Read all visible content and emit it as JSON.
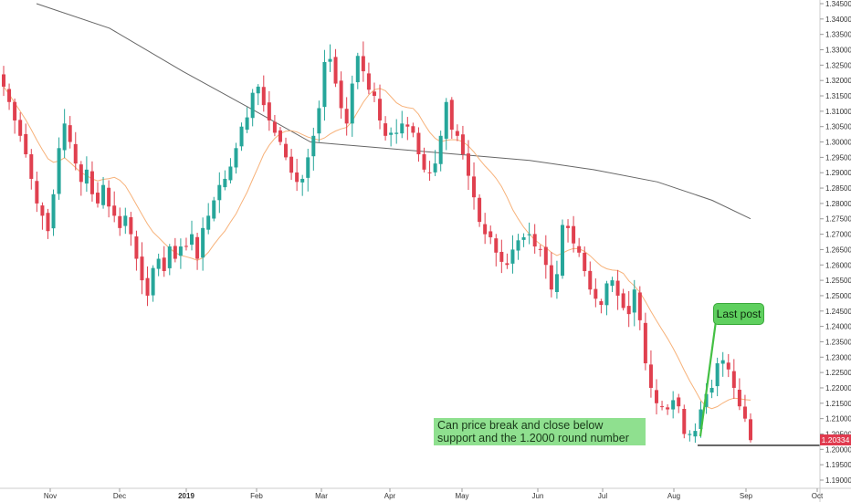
{
  "chart_data": {
    "type": "candlestick",
    "symbol_hint": "",
    "y_axis": {
      "min": 1.19,
      "max": 1.345,
      "ticks": [
        "1.34500",
        "1.34000",
        "1.33500",
        "1.33000",
        "1.32500",
        "1.32000",
        "1.31500",
        "1.31000",
        "1.30500",
        "1.30000",
        "1.29500",
        "1.29000",
        "1.28500",
        "1.28000",
        "1.27500",
        "1.27000",
        "1.26500",
        "1.26000",
        "1.25500",
        "1.25000",
        "1.24500",
        "1.24000",
        "1.23500",
        "1.23000",
        "1.22500",
        "1.22000",
        "1.21500",
        "1.21000",
        "1.20500",
        "1.20000",
        "1.19500",
        "1.19000"
      ]
    },
    "x_axis": {
      "labels": [
        {
          "text": "Nov",
          "bold": false
        },
        {
          "text": "Dec",
          "bold": false
        },
        {
          "text": "2019",
          "bold": true
        },
        {
          "text": "Feb",
          "bold": false
        },
        {
          "text": "Mar",
          "bold": false
        },
        {
          "text": "Apr",
          "bold": false
        },
        {
          "text": "May",
          "bold": false
        },
        {
          "text": "Jun",
          "bold": false
        },
        {
          "text": "Jul",
          "bold": false
        },
        {
          "text": "Aug",
          "bold": false
        },
        {
          "text": "Sep",
          "bold": false
        },
        {
          "text": "Oct",
          "bold": false
        }
      ]
    },
    "current_price": "1.20334",
    "support_level": 1.2013,
    "colors": {
      "up": "#26a69a",
      "down": "#e0404f",
      "ma_fast": "#f7b27a",
      "ma_slow": "#666666",
      "support": "#222222"
    },
    "closes": [
      1.318,
      1.313,
      1.307,
      1.302,
      1.296,
      1.288,
      1.28,
      1.276,
      1.271,
      1.283,
      1.298,
      1.306,
      1.3,
      1.293,
      1.287,
      1.291,
      1.283,
      1.28,
      1.286,
      1.279,
      1.276,
      1.272,
      1.276,
      1.27,
      1.262,
      1.255,
      1.25,
      1.259,
      1.262,
      1.258,
      1.266,
      1.262,
      1.266,
      1.266,
      1.27,
      1.262,
      1.272,
      1.276,
      1.281,
      1.286,
      1.288,
      1.292,
      1.298,
      1.305,
      1.308,
      1.316,
      1.318,
      1.312,
      1.307,
      1.303,
      1.3,
      1.295,
      1.29,
      1.287,
      1.288,
      1.295,
      1.302,
      1.311,
      1.326,
      1.327,
      1.319,
      1.311,
      1.306,
      1.319,
      1.328,
      1.323,
      1.317,
      1.315,
      1.307,
      1.302,
      1.303,
      1.303,
      1.306,
      1.305,
      1.303,
      1.296,
      1.291,
      1.29,
      1.293,
      1.302,
      1.313,
      1.304,
      1.302,
      1.296,
      1.289,
      1.282,
      1.274,
      1.27,
      1.269,
      1.264,
      1.261,
      1.26,
      1.265,
      1.268,
      1.269,
      1.27,
      1.266,
      1.265,
      1.26,
      1.252,
      1.257,
      1.273,
      1.272,
      1.267,
      1.264,
      1.258,
      1.252,
      1.249,
      1.247,
      1.254,
      1.255,
      1.25,
      1.246,
      1.244,
      1.252,
      1.242,
      1.228,
      1.22,
      1.215,
      1.214,
      1.213,
      1.216,
      1.214,
      1.205,
      1.205,
      1.206,
      1.213,
      1.218,
      1.22,
      1.228,
      1.229,
      1.226,
      1.22,
      1.214,
      1.21,
      1.203
    ],
    "annotations": {
      "box_text_line1": "Can price break and close below",
      "box_text_line2": "support and the 1.2000 round number",
      "callout_text": "Last post"
    }
  }
}
